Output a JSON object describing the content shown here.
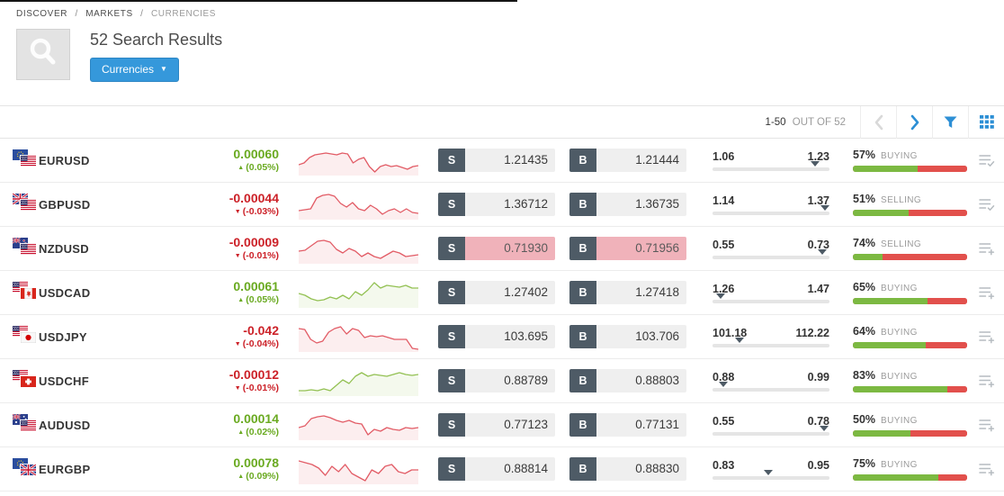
{
  "breadcrumb": {
    "items": [
      "DISCOVER",
      "MARKETS",
      "CURRENCIES"
    ],
    "separator": "/"
  },
  "header": {
    "title": "52 Search Results",
    "filter_label": "Currencies",
    "search_icon": "magnifier-icon"
  },
  "pagination": {
    "current_range": "1-50",
    "total_label": "OUT OF 52",
    "prev_icon": "chevron-left-icon",
    "next_icon": "chevron-right-icon",
    "filter_icon": "funnel-icon",
    "view_icon": "grid-view-icon"
  },
  "trade": {
    "sell_label": "S",
    "buy_label": "B"
  },
  "colors": {
    "accent_blue": "#3598db",
    "positive_green": "#6aaa21",
    "negative_red": "#cc2128",
    "button_slate": "#4e5b66",
    "sentiment_green": "#7cb942",
    "sentiment_red": "#e2504c",
    "highlight_pink": "#f0b2ba",
    "spark_red": "#e25c66",
    "spark_green": "#93c153"
  },
  "rows": [
    {
      "symbol": "EURUSD",
      "flags": [
        "eu",
        "us"
      ],
      "change": "0.00060",
      "change_pct": "(0.05%)",
      "trend": "up",
      "spark_color": "red",
      "sell": "1.21435",
      "buy": "1.21444",
      "highlight": false,
      "range_low": "1.06",
      "range_high": "1.23",
      "marker_pct": 88,
      "sentiment_pct": "57%",
      "sentiment_label": "BUYING",
      "green_pct": 57,
      "watch_icon": "check",
      "spark": [
        22,
        20,
        14,
        11,
        10,
        9,
        10,
        11,
        9,
        10,
        20,
        16,
        14,
        24,
        30,
        24,
        22,
        24,
        23,
        25,
        27,
        24,
        23
      ]
    },
    {
      "symbol": "GBPUSD",
      "flags": [
        "gb",
        "us"
      ],
      "change": "-0.00044",
      "change_pct": "(-0.03%)",
      "trend": "down",
      "spark_color": "red",
      "sell": "1.36712",
      "buy": "1.36735",
      "highlight": false,
      "range_low": "1.14",
      "range_high": "1.37",
      "marker_pct": 96,
      "sentiment_pct": "51%",
      "sentiment_label": "SELLING",
      "green_pct": 49,
      "watch_icon": "check",
      "spark": [
        24,
        23,
        22,
        10,
        7,
        6,
        8,
        16,
        20,
        15,
        22,
        24,
        18,
        22,
        28,
        24,
        22,
        26,
        22,
        26,
        27
      ]
    },
    {
      "symbol": "NZDUSD",
      "flags": [
        "nz",
        "us"
      ],
      "change": "-0.00009",
      "change_pct": "(-0.01%)",
      "trend": "down",
      "spark_color": "red",
      "sell": "0.71930",
      "buy": "0.71956",
      "highlight": true,
      "range_low": "0.55",
      "range_high": "0.73",
      "marker_pct": 94,
      "sentiment_pct": "74%",
      "sentiment_label": "SELLING",
      "green_pct": 26,
      "watch_icon": "plus",
      "spark": [
        20,
        19,
        14,
        9,
        8,
        10,
        18,
        22,
        17,
        20,
        26,
        22,
        26,
        28,
        24,
        20,
        22,
        26,
        25,
        24
      ]
    },
    {
      "symbol": "USDCAD",
      "flags": [
        "us",
        "ca"
      ],
      "change": "0.00061",
      "change_pct": "(0.05%)",
      "trend": "up",
      "spark_color": "green",
      "sell": "1.27402",
      "buy": "1.27418",
      "highlight": false,
      "range_low": "1.26",
      "range_high": "1.47",
      "marker_pct": 7,
      "sentiment_pct": "65%",
      "sentiment_label": "BUYING",
      "green_pct": 65,
      "watch_icon": "plus",
      "spark": [
        18,
        20,
        24,
        26,
        25,
        22,
        24,
        20,
        24,
        16,
        20,
        14,
        6,
        12,
        9,
        10,
        11,
        9,
        12,
        12
      ]
    },
    {
      "symbol": "USDJPY",
      "flags": [
        "us",
        "jp"
      ],
      "change": "-0.042",
      "change_pct": "(-0.04%)",
      "trend": "down",
      "spark_color": "red",
      "sell": "103.695",
      "buy": "103.706",
      "highlight": false,
      "range_low": "101.18",
      "range_high": "112.22",
      "marker_pct": 23,
      "sentiment_pct": "64%",
      "sentiment_label": "BUYING",
      "green_pct": 64,
      "watch_icon": "plus",
      "spark": [
        8,
        9,
        20,
        24,
        22,
        12,
        8,
        6,
        14,
        8,
        10,
        18,
        16,
        17,
        16,
        18,
        20,
        20,
        20,
        30,
        31
      ]
    },
    {
      "symbol": "USDCHF",
      "flags": [
        "us",
        "ch"
      ],
      "change": "-0.00012",
      "change_pct": "(-0.01%)",
      "trend": "down",
      "spark_color": "green",
      "sell": "0.88789",
      "buy": "0.88803",
      "highlight": false,
      "range_low": "0.88",
      "range_high": "0.99",
      "marker_pct": 9,
      "sentiment_pct": "83%",
      "sentiment_label": "BUYING",
      "green_pct": 83,
      "watch_icon": "plus",
      "spark": [
        28,
        28,
        27,
        28,
        26,
        28,
        22,
        16,
        20,
        12,
        8,
        12,
        10,
        11,
        12,
        10,
        8,
        10,
        11,
        10
      ]
    },
    {
      "symbol": "AUDUSD",
      "flags": [
        "au",
        "us"
      ],
      "change": "0.00014",
      "change_pct": "(0.02%)",
      "trend": "up",
      "spark_color": "red",
      "sell": "0.77123",
      "buy": "0.77131",
      "highlight": false,
      "range_low": "0.55",
      "range_high": "0.78",
      "marker_pct": 95,
      "sentiment_pct": "50%",
      "sentiment_label": "BUYING",
      "green_pct": 50,
      "watch_icon": "plus",
      "spark": [
        20,
        18,
        10,
        8,
        7,
        9,
        12,
        14,
        12,
        15,
        16,
        28,
        22,
        24,
        20,
        22,
        23,
        20,
        21,
        20
      ]
    },
    {
      "symbol": "EURGBP",
      "flags": [
        "eu",
        "gb"
      ],
      "change": "0.00078",
      "change_pct": "(0.09%)",
      "trend": "up",
      "spark_color": "red",
      "sell": "0.88814",
      "buy": "0.88830",
      "highlight": false,
      "range_low": "0.83",
      "range_high": "0.95",
      "marker_pct": 48,
      "sentiment_pct": "75%",
      "sentiment_label": "BUYING",
      "green_pct": 75,
      "watch_icon": "plus",
      "spark": [
        8,
        10,
        12,
        16,
        24,
        14,
        20,
        12,
        22,
        26,
        30,
        18,
        22,
        14,
        12,
        20,
        22,
        18,
        18
      ]
    }
  ]
}
